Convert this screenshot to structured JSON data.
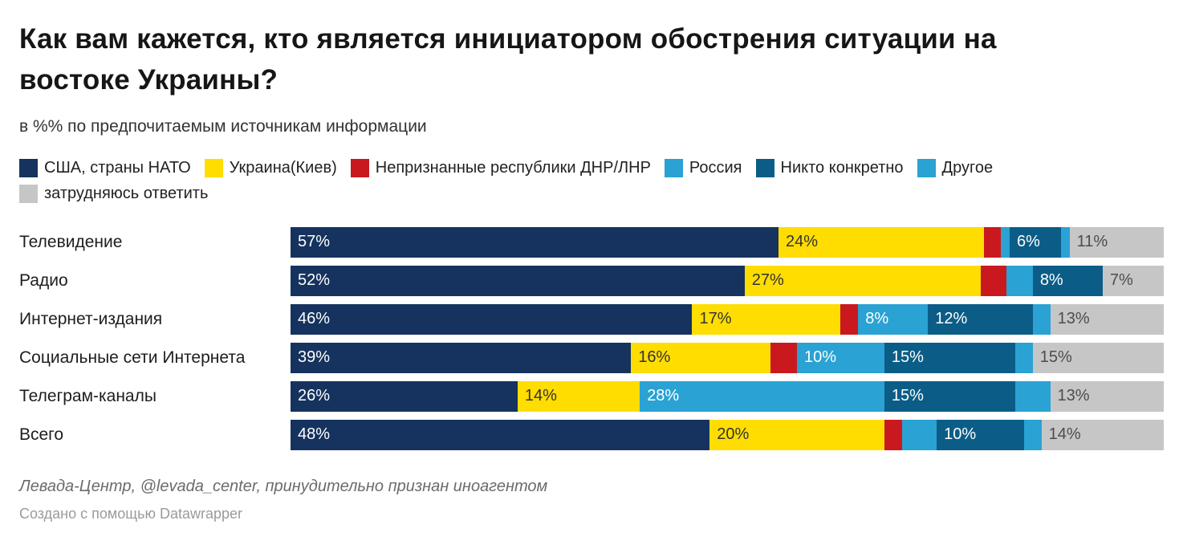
{
  "header": {
    "title": "Как вам кажется, кто является инициатором обострения ситуации на востоке Украины?",
    "subtitle": "в %% по предпочитаемым источникам информации"
  },
  "colors": {
    "navy": "#15335e",
    "yellow": "#ffdd00",
    "red": "#c9191f",
    "light_blue": "#2aa2d3",
    "petrol": "#0b5d87",
    "gray": "#c6c6c6"
  },
  "legend": {
    "items": [
      {
        "label": "США, страны НАТО",
        "color": "#15335e"
      },
      {
        "label": "Украина(Киев)",
        "color": "#ffdd00"
      },
      {
        "label": "Непризнанные республики ДНР/ЛНР",
        "color": "#c9191f"
      },
      {
        "label": "Россия",
        "color": "#2aa2d3"
      },
      {
        "label": "Никто конкретно",
        "color": "#0b5d87"
      },
      {
        "label": "Другое",
        "color": "#2aa2d3"
      },
      {
        "label": "затрудняюсь ответить",
        "color": "#c6c6c6"
      }
    ]
  },
  "chart_data": {
    "type": "bar",
    "orientation": "horizontal",
    "stacked": true,
    "unit": "%",
    "label_threshold": 6,
    "categories": [
      "Телевидение",
      "Радио",
      "Интернет-издания",
      "Социальные сети Интернета",
      "Телеграм-каналы",
      "Всего"
    ],
    "series": [
      {
        "name": "США, страны НАТО",
        "color": "#15335e",
        "label_color": "#ffffff",
        "values": [
          57,
          52,
          46,
          39,
          26,
          48
        ]
      },
      {
        "name": "Украина(Киев)",
        "color": "#ffdd00",
        "label_color": "#333333",
        "values": [
          24,
          27,
          17,
          16,
          14,
          20
        ]
      },
      {
        "name": "Непризнанные республики ДНР/ЛНР",
        "color": "#c9191f",
        "label_color": "#ffffff",
        "values": [
          2,
          3,
          2,
          3,
          0,
          2
        ]
      },
      {
        "name": "Россия",
        "color": "#2aa2d3",
        "label_color": "#ffffff",
        "values": [
          1,
          3,
          8,
          10,
          28,
          4
        ]
      },
      {
        "name": "Никто конкретно",
        "color": "#0b5d87",
        "label_color": "#ffffff",
        "values": [
          6,
          8,
          12,
          15,
          15,
          10
        ]
      },
      {
        "name": "Другое",
        "color": "#2aa2d3",
        "label_color": "#ffffff",
        "values": [
          1,
          0,
          2,
          2,
          4,
          2
        ]
      },
      {
        "name": "затрудняюсь ответить",
        "color": "#c6c6c6",
        "label_color": "#4d4d4d",
        "values": [
          11,
          7,
          13,
          15,
          13,
          14
        ]
      }
    ]
  },
  "footer": {
    "source": "Левада-Центр, @levada_center, принудительно признан иноагентом",
    "credit": "Создано с помощью Datawrapper"
  }
}
